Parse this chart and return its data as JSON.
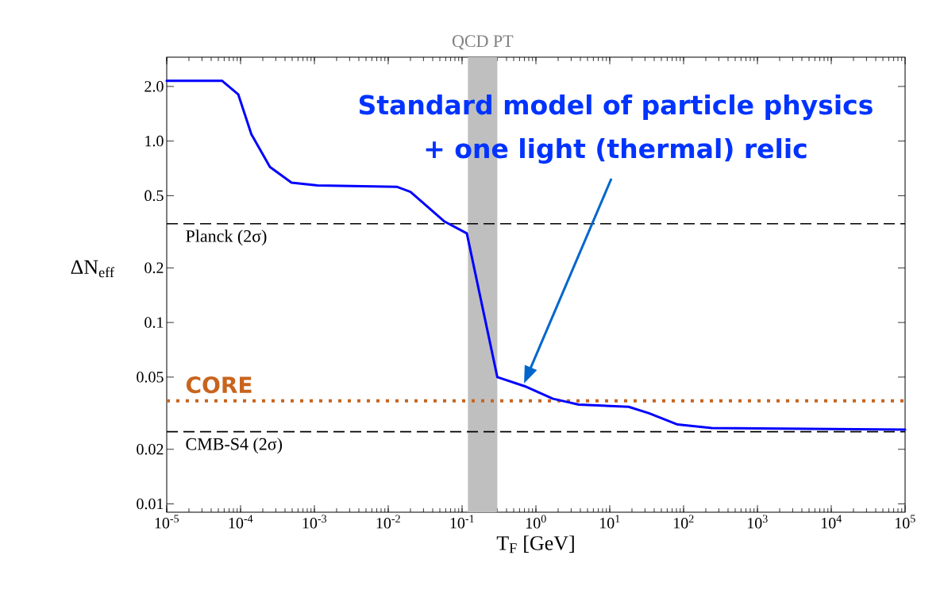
{
  "chart_data": {
    "type": "line",
    "xlabel": "T$_{F}$ [GeV]",
    "ylabel": "ΔN$_{eff}$",
    "log": "xy",
    "xlim": [
      1e-05,
      100000
    ],
    "ylim": [
      0.009,
      2.9
    ],
    "xticks": [
      {
        "value": 1e-05,
        "label": "10$^{-5}$"
      },
      {
        "value": 0.0001,
        "label": "10$^{-4}$"
      },
      {
        "value": 0.001,
        "label": "10$^{-3}$"
      },
      {
        "value": 0.01,
        "label": "10$^{-2}$"
      },
      {
        "value": 0.1,
        "label": "10$^{-1}$"
      },
      {
        "value": 1,
        "label": "10$^{0}$"
      },
      {
        "value": 10,
        "label": "10$^{1}$"
      },
      {
        "value": 100,
        "label": "10$^{2}$"
      },
      {
        "value": 1000,
        "label": "10$^{3}$"
      },
      {
        "value": 10000,
        "label": "10$^{4}$"
      },
      {
        "value": 100000,
        "label": "10$^{5}$"
      }
    ],
    "yticks": [
      0.01,
      0.02,
      0.05,
      0.1,
      0.2,
      0.5,
      {
        "value": 1,
        "label": "1.0"
      },
      {
        "value": 2,
        "label": "2.0"
      }
    ],
    "x": [
      1e-05,
      5e-05,
      5.6e-05,
      9.3e-05,
      0.00014,
      0.00025,
      0.00049,
      0.0011,
      0.013,
      0.02,
      0.058,
      0.116,
      0.3,
      0.7,
      1.7,
      3.8,
      18,
      34,
      83,
      240,
      100000
    ],
    "series": [
      {
        "color": "#0000ff",
        "values": [
          2.15,
          2.15,
          2.15,
          1.81,
          1.09,
          0.72,
          0.59,
          0.57,
          0.56,
          0.525,
          0.36,
          0.31,
          0.05,
          0.0446,
          0.038,
          0.0353,
          0.0343,
          0.0316,
          0.0274,
          0.0262,
          0.0257
        ]
      }
    ],
    "ref_lines": [
      {
        "axis": "y",
        "value": 0.35,
        "label": "Planck (2σ)",
        "color": "#000000",
        "line_style": "dashed"
      },
      {
        "axis": "y",
        "value": 0.025,
        "label": "CMB-S4 (2σ)",
        "color": "#000000",
        "line_style": "dashed"
      },
      {
        "axis": "y",
        "value": 0.037,
        "label": "CORE",
        "color": "#c8641e",
        "line_style": "dotted"
      }
    ],
    "bands": [
      {
        "axis": "x",
        "from": 0.12,
        "to": 0.3,
        "label": "QCD PT",
        "color": "#bfbfbf"
      }
    ],
    "annotations": [
      "Standard model of particle physics",
      "+ one light (thermal) relic"
    ]
  }
}
